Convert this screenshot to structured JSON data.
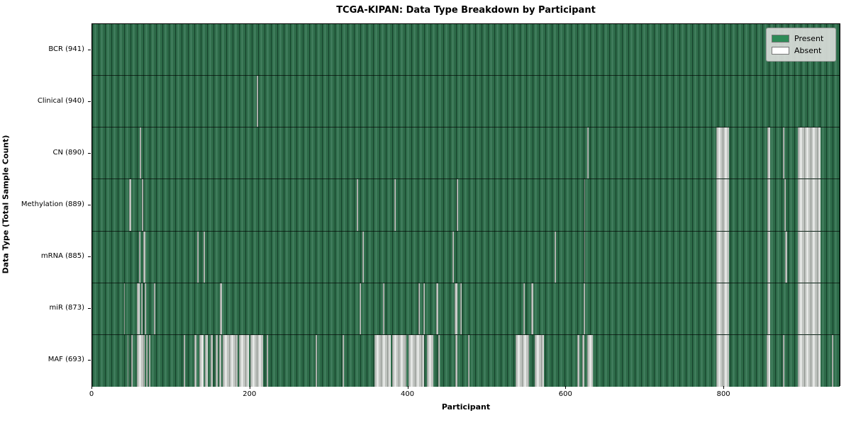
{
  "chart_data": {
    "type": "heatmap",
    "title": "TCGA-KIPAN: Data Type Breakdown by Participant",
    "xlabel": "Participant",
    "ylabel": "Data Type (Total Sample Count)",
    "x_range": [
      0,
      948
    ],
    "x_ticks": [
      0,
      200,
      400,
      600,
      800
    ],
    "grid": false,
    "legend": {
      "position": "upper right",
      "entries": [
        {
          "label": "Present",
          "color": "#2e8b57"
        },
        {
          "label": "Absent",
          "color": "#ffffff"
        }
      ]
    },
    "rows": [
      {
        "label": "BCR",
        "present_count": 941,
        "tick_label": "BCR (941)",
        "absent_runs": []
      },
      {
        "label": "Clinical",
        "present_count": 940,
        "tick_label": "Clinical (940)",
        "absent_runs": [
          [
            208,
            210
          ]
        ]
      },
      {
        "label": "CN",
        "present_count": 890,
        "tick_label": "CN (890)",
        "absent_runs": [
          [
            60,
            62
          ],
          [
            627,
            628
          ],
          [
            790,
            806
          ],
          [
            855,
            858
          ],
          [
            874,
            876
          ],
          [
            893,
            922
          ]
        ]
      },
      {
        "label": "Methylation",
        "present_count": 889,
        "tick_label": "Methylation (889)",
        "absent_runs": [
          [
            47,
            49
          ],
          [
            63,
            65
          ],
          [
            335,
            337
          ],
          [
            382,
            384
          ],
          [
            461,
            463
          ],
          [
            623,
            624
          ],
          [
            790,
            806
          ],
          [
            855,
            858
          ],
          [
            876,
            878
          ],
          [
            893,
            922
          ]
        ]
      },
      {
        "label": "mRNA",
        "present_count": 885,
        "tick_label": "mRNA (885)",
        "absent_runs": [
          [
            59,
            61
          ],
          [
            65,
            67
          ],
          [
            133,
            135
          ],
          [
            141,
            143
          ],
          [
            342,
            344
          ],
          [
            456,
            458
          ],
          [
            585,
            587
          ],
          [
            623,
            624
          ],
          [
            790,
            806
          ],
          [
            855,
            858
          ],
          [
            877,
            880
          ],
          [
            893,
            922
          ]
        ]
      },
      {
        "label": "miR",
        "present_count": 873,
        "tick_label": "miR (873)",
        "absent_runs": [
          [
            40,
            41
          ],
          [
            57,
            60
          ],
          [
            62,
            64
          ],
          [
            66,
            68
          ],
          [
            78,
            80
          ],
          [
            162,
            164
          ],
          [
            338,
            340
          ],
          [
            368,
            370
          ],
          [
            413,
            415
          ],
          [
            419,
            421
          ],
          [
            435,
            438
          ],
          [
            459,
            462
          ],
          [
            466,
            468
          ],
          [
            546,
            548
          ],
          [
            556,
            558
          ],
          [
            622,
            624
          ],
          [
            790,
            806
          ],
          [
            855,
            858
          ],
          [
            893,
            922
          ]
        ]
      },
      {
        "label": "MAF",
        "present_count": 693,
        "tick_label": "MAF (693)",
        "absent_runs": [
          [
            45,
            46
          ],
          [
            49,
            51
          ],
          [
            57,
            66
          ],
          [
            68,
            70
          ],
          [
            72,
            74
          ],
          [
            116,
            118
          ],
          [
            129,
            132
          ],
          [
            136,
            141
          ],
          [
            143,
            146
          ],
          [
            150,
            153
          ],
          [
            156,
            159
          ],
          [
            161,
            163
          ],
          [
            165,
            184
          ],
          [
            186,
            198
          ],
          [
            200,
            216
          ],
          [
            221,
            223
          ],
          [
            283,
            285
          ],
          [
            317,
            319
          ],
          [
            357,
            378
          ],
          [
            380,
            398
          ],
          [
            400,
            420
          ],
          [
            424,
            432
          ],
          [
            438,
            440
          ],
          [
            460,
            462
          ],
          [
            476,
            478
          ],
          [
            536,
            553
          ],
          [
            560,
            572
          ],
          [
            614,
            617
          ],
          [
            620,
            623
          ],
          [
            627,
            634
          ],
          [
            790,
            806
          ],
          [
            854,
            858
          ],
          [
            874,
            876
          ],
          [
            893,
            922
          ],
          [
            936,
            938
          ]
        ]
      }
    ]
  }
}
